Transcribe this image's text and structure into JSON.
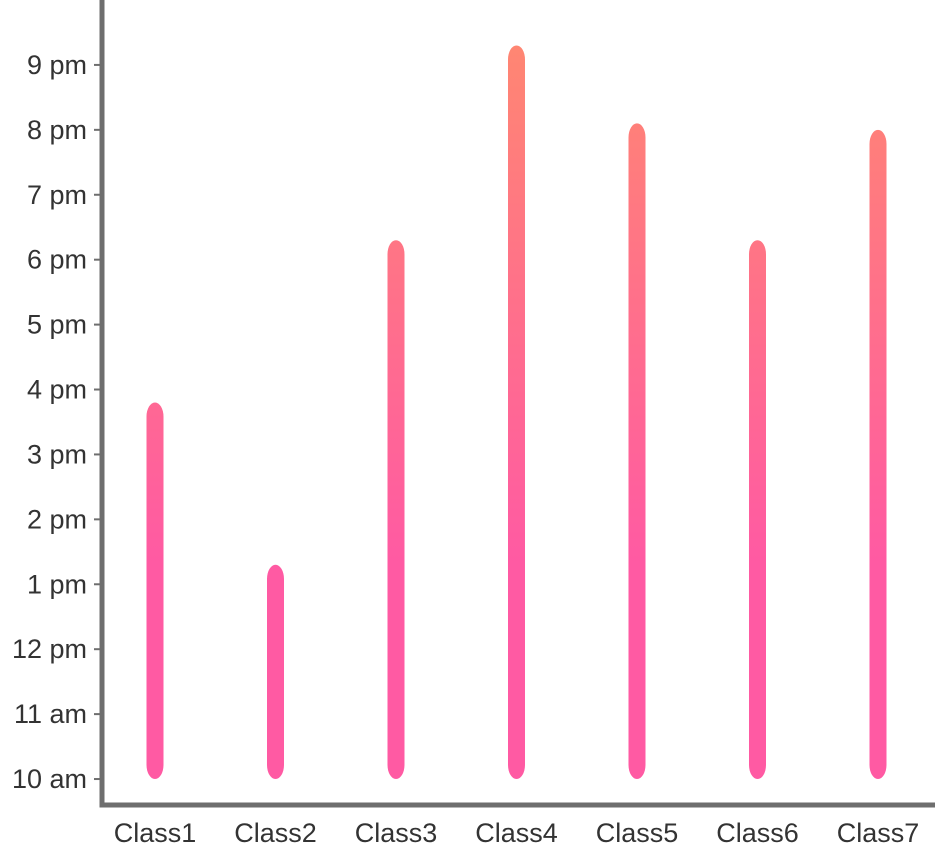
{
  "chart_data": {
    "type": "bar",
    "orientation": "vertical",
    "categories": [
      "Class1",
      "Class2",
      "Class3",
      "Class4",
      "Class5",
      "Class6",
      "Class7"
    ],
    "y_tick_labels": [
      "10 am",
      "11 am",
      "12 pm",
      "1 pm",
      "2 pm",
      "3 pm",
      "4 pm",
      "5 pm",
      "6 pm",
      "7 pm",
      "8 pm",
      "9 pm"
    ],
    "y_tick_values": [
      10,
      11,
      12,
      13,
      14,
      15,
      16,
      17,
      18,
      19,
      20,
      21
    ],
    "ylim": [
      9.6,
      22.0
    ],
    "series": [
      {
        "start": [
          10.0,
          10.0,
          10.0,
          10.0,
          10.0,
          10.0,
          10.0
        ],
        "end": [
          15.8,
          13.3,
          18.3,
          21.3,
          20.1,
          18.3,
          20.0
        ]
      }
    ],
    "title": "",
    "xlabel": "",
    "ylabel": "",
    "grid": false,
    "colors": {
      "bar_bottom": "#ff5aa3",
      "bar_top": "#ff8a6e",
      "axis": "#6e6e6e"
    }
  }
}
